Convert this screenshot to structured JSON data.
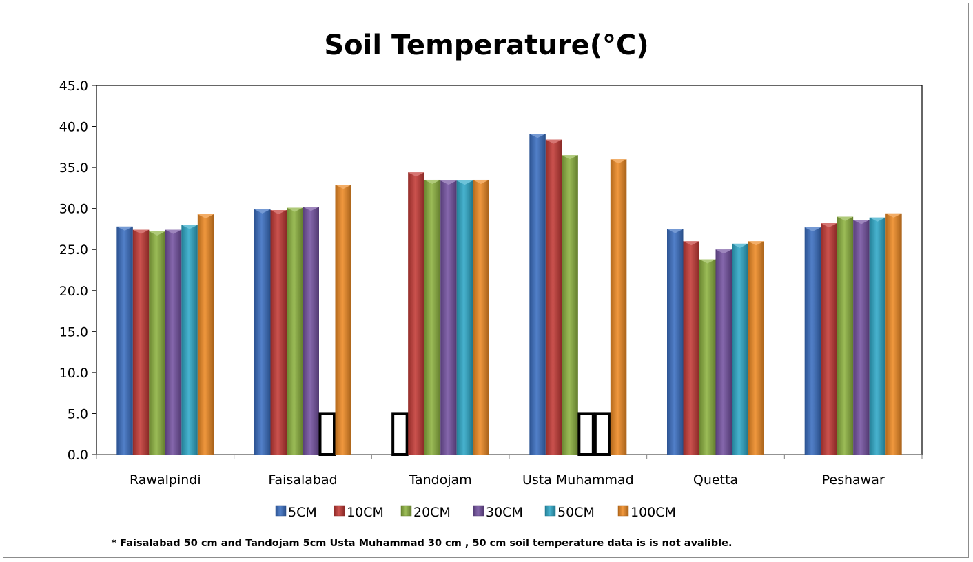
{
  "chart_data": {
    "type": "bar",
    "title": "Soil Temperature(°C)",
    "xlabel": "",
    "ylabel": "",
    "ylim": [
      0,
      45
    ],
    "ytick_step": 5,
    "ytick_labels": [
      "0.0",
      "5.0",
      "10.0",
      "15.0",
      "20.0",
      "25.0",
      "30.0",
      "35.0",
      "40.0",
      "45.0"
    ],
    "grid": false,
    "legend_position": "bottom",
    "categories": [
      "Rawalpindi",
      "Faisalabad",
      "Tandojam",
      "Usta Muhammad",
      "Quetta",
      "Peshawar"
    ],
    "series": [
      {
        "name": "5CM",
        "color": "#3a6fc2",
        "values": [
          27.8,
          29.9,
          null,
          39.1,
          27.5,
          27.7
        ]
      },
      {
        "name": "10CM",
        "color": "#c43a36",
        "values": [
          27.4,
          29.8,
          34.4,
          38.4,
          26.0,
          28.2
        ]
      },
      {
        "name": "20CM",
        "color": "#8db340",
        "values": [
          27.2,
          30.1,
          33.5,
          36.5,
          23.8,
          29.0
        ]
      },
      {
        "name": "30CM",
        "color": "#7452a1",
        "values": [
          27.4,
          30.2,
          33.4,
          null,
          25.0,
          28.6
        ]
      },
      {
        "name": "50CM",
        "color": "#2fa9c8",
        "values": [
          28.0,
          null,
          33.4,
          null,
          25.7,
          28.9
        ]
      },
      {
        "name": "100CM",
        "color": "#ee8a24",
        "values": [
          29.3,
          32.9,
          33.5,
          36.0,
          26.0,
          29.4
        ]
      }
    ],
    "missing_marker_value": 5.0,
    "footnote": "* Faisalabad 50 cm and Tandojam 5cm Usta Muhammad 30 cm , 50 cm  soil temperature data  is  is not avalible."
  }
}
